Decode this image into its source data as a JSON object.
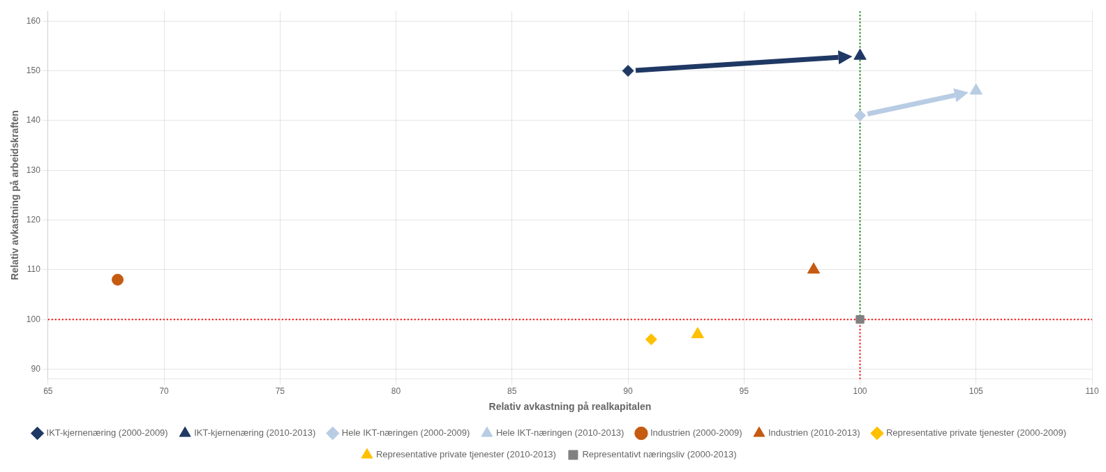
{
  "chart_data": {
    "type": "scatter",
    "xlabel": "Relativ avkastning på realkapitalen",
    "ylabel": "Relativ avkastning på arbeidskraften",
    "xlim": [
      65,
      110
    ],
    "ylim": [
      88,
      162
    ],
    "xticks": [
      65,
      70,
      75,
      80,
      85,
      90,
      95,
      100,
      105,
      110
    ],
    "yticks": [
      90,
      100,
      110,
      120,
      130,
      140,
      150,
      160
    ],
    "grid": true,
    "legend": "bottom",
    "series": [
      {
        "name": "IKT-kjernenæring (2000-2009)",
        "x": [
          90
        ],
        "values": [
          150
        ],
        "marker": "diamond",
        "color": "#1F3864"
      },
      {
        "name": "IKT-kjernenæring (2010-2013)",
        "x": [
          100
        ],
        "values": [
          153
        ],
        "marker": "triangle",
        "color": "#1F3864"
      },
      {
        "name": "Hele IKT-næringen (2000-2009)",
        "x": [
          100
        ],
        "values": [
          141
        ],
        "marker": "diamond",
        "color": "#B8CCE4"
      },
      {
        "name": "Hele IKT-næringen (2010-2013)",
        "x": [
          105
        ],
        "values": [
          146
        ],
        "marker": "triangle",
        "color": "#B8CCE4"
      },
      {
        "name": "Industrien (2000-2009)",
        "x": [
          68
        ],
        "values": [
          108
        ],
        "marker": "circle",
        "color": "#C55A11"
      },
      {
        "name": "Industrien (2010-2013)",
        "x": [
          98
        ],
        "values": [
          110
        ],
        "marker": "triangle",
        "color": "#C55A11"
      },
      {
        "name": "Representative private tjenester (2000-2009)",
        "x": [
          91
        ],
        "values": [
          96
        ],
        "marker": "diamond",
        "color": "#FFC000"
      },
      {
        "name": "Representative private tjenester (2010-2013)",
        "x": [
          93
        ],
        "values": [
          97
        ],
        "marker": "triangle",
        "color": "#FFC000"
      },
      {
        "name": "Representativt næringsliv (2000-2013)",
        "x": [
          100
        ],
        "values": [
          100
        ],
        "marker": "square",
        "color": "#808080"
      }
    ],
    "hlines": [
      {
        "y": 100,
        "color": "red",
        "line_style": "dotted"
      }
    ],
    "vlines": [
      {
        "x": 100,
        "y": [
          100,
          162
        ],
        "color": "green",
        "line_style": "dotted"
      },
      {
        "x": 100,
        "y": [
          88,
          100
        ],
        "color": "red",
        "line_style": "dotted"
      }
    ],
    "arrows": [
      {
        "x": [
          90,
          100
        ],
        "y": [
          150,
          153
        ],
        "color": "#1F3864"
      },
      {
        "x": [
          100,
          105
        ],
        "y": [
          141,
          146
        ],
        "color": "#B8CCE4"
      }
    ]
  }
}
